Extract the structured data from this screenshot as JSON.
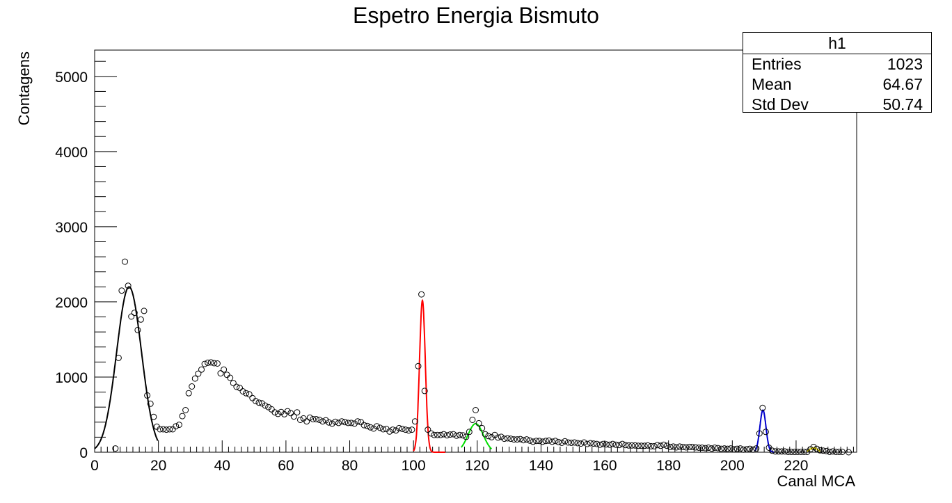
{
  "chart_data": {
    "type": "scatter",
    "title": "Espetro Energia Bismuto",
    "xlabel": "Canal MCA",
    "ylabel": "Contagens",
    "xlim": [
      0,
      239
    ],
    "ylim": [
      0,
      5350
    ],
    "xticks": [
      0,
      20,
      40,
      60,
      80,
      100,
      120,
      140,
      160,
      180,
      200,
      220
    ],
    "yticks": [
      0,
      1000,
      2000,
      3000,
      4000,
      5000
    ],
    "grid": false,
    "stats_box": {
      "name": "h1",
      "rows": [
        {
          "label": "Entries",
          "value": "1023"
        },
        {
          "label": "Mean",
          "value": "64.67"
        },
        {
          "label": "Std Dev",
          "value": "50.74"
        }
      ]
    },
    "points": [
      [
        6.5,
        50
      ],
      [
        7.5,
        1255
      ],
      [
        8.5,
        2150
      ],
      [
        9.5,
        2535
      ],
      [
        10.5,
        2215
      ],
      [
        11.5,
        1805
      ],
      [
        12.5,
        1855
      ],
      [
        13.5,
        1625
      ],
      [
        14.5,
        1765
      ],
      [
        15.5,
        1880
      ],
      [
        16.5,
        755
      ],
      [
        17.5,
        645
      ],
      [
        18.5,
        470
      ],
      [
        19.5,
        340
      ],
      [
        20.5,
        305
      ],
      [
        21.5,
        305
      ],
      [
        22.5,
        300
      ],
      [
        23.5,
        305
      ],
      [
        24.5,
        305
      ],
      [
        25.5,
        345
      ],
      [
        26.5,
        365
      ],
      [
        27.5,
        480
      ],
      [
        28.5,
        560
      ],
      [
        29.5,
        785
      ],
      [
        30.5,
        875
      ],
      [
        31.5,
        980
      ],
      [
        32.5,
        1045
      ],
      [
        33.5,
        1100
      ],
      [
        34.5,
        1175
      ],
      [
        35.5,
        1190
      ],
      [
        36.5,
        1195
      ],
      [
        37.5,
        1185
      ],
      [
        38.5,
        1180
      ],
      [
        39.5,
        1050
      ],
      [
        40.5,
        1100
      ],
      [
        41.5,
        1030
      ],
      [
        42.5,
        990
      ],
      [
        43.5,
        920
      ],
      [
        44.5,
        870
      ],
      [
        45.5,
        855
      ],
      [
        46.5,
        810
      ],
      [
        47.5,
        785
      ],
      [
        48.5,
        770
      ],
      [
        49.5,
        720
      ],
      [
        50.5,
        680
      ],
      [
        51.5,
        660
      ],
      [
        52.5,
        650
      ],
      [
        53.5,
        620
      ],
      [
        54.5,
        600
      ],
      [
        55.5,
        570
      ],
      [
        56.5,
        530
      ],
      [
        57.5,
        510
      ],
      [
        58.5,
        535
      ],
      [
        59.5,
        505
      ],
      [
        60.5,
        545
      ],
      [
        61.5,
        520
      ],
      [
        62.5,
        475
      ],
      [
        63.5,
        530
      ],
      [
        64.5,
        430
      ],
      [
        65.5,
        450
      ],
      [
        66.5,
        410
      ],
      [
        67.5,
        460
      ],
      [
        68.5,
        440
      ],
      [
        69.5,
        440
      ],
      [
        70.5,
        430
      ],
      [
        71.5,
        410
      ],
      [
        72.5,
        425
      ],
      [
        73.5,
        395
      ],
      [
        74.5,
        380
      ],
      [
        75.5,
        405
      ],
      [
        76.5,
        390
      ],
      [
        77.5,
        410
      ],
      [
        78.5,
        400
      ],
      [
        79.5,
        390
      ],
      [
        80.5,
        390
      ],
      [
        81.5,
        380
      ],
      [
        82.5,
        410
      ],
      [
        83.5,
        400
      ],
      [
        84.5,
        360
      ],
      [
        85.5,
        350
      ],
      [
        86.5,
        330
      ],
      [
        87.5,
        315
      ],
      [
        88.5,
        345
      ],
      [
        89.5,
        325
      ],
      [
        90.5,
        305
      ],
      [
        91.5,
        310
      ],
      [
        92.5,
        275
      ],
      [
        93.5,
        300
      ],
      [
        94.5,
        290
      ],
      [
        95.5,
        320
      ],
      [
        96.5,
        310
      ],
      [
        97.5,
        300
      ],
      [
        98.5,
        290
      ],
      [
        99.5,
        300
      ],
      [
        100.5,
        410
      ],
      [
        101.5,
        1145
      ],
      [
        102.5,
        2100
      ],
      [
        103.5,
        815
      ],
      [
        104.5,
        300
      ],
      [
        105.5,
        250
      ],
      [
        106.5,
        230
      ],
      [
        107.5,
        230
      ],
      [
        108.5,
        230
      ],
      [
        109.5,
        240
      ],
      [
        110.5,
        225
      ],
      [
        111.5,
        235
      ],
      [
        112.5,
        240
      ],
      [
        113.5,
        220
      ],
      [
        114.5,
        230
      ],
      [
        115.5,
        225
      ],
      [
        116.5,
        205
      ],
      [
        117.5,
        270
      ],
      [
        118.5,
        430
      ],
      [
        119.5,
        560
      ],
      [
        120.5,
        385
      ],
      [
        121.5,
        320
      ],
      [
        122.5,
        240
      ],
      [
        123.5,
        215
      ],
      [
        124.5,
        200
      ],
      [
        125.5,
        230
      ],
      [
        126.5,
        195
      ],
      [
        127.5,
        205
      ],
      [
        128.5,
        180
      ],
      [
        129.5,
        185
      ],
      [
        130.5,
        180
      ],
      [
        131.5,
        170
      ],
      [
        132.5,
        170
      ],
      [
        133.5,
        175
      ],
      [
        134.5,
        160
      ],
      [
        135.5,
        170
      ],
      [
        136.5,
        155
      ],
      [
        137.5,
        140
      ],
      [
        138.5,
        150
      ],
      [
        139.5,
        150
      ],
      [
        140.5,
        140
      ],
      [
        141.5,
        150
      ],
      [
        142.5,
        155
      ],
      [
        143.5,
        140
      ],
      [
        144.5,
        150
      ],
      [
        145.5,
        135
      ],
      [
        146.5,
        125
      ],
      [
        147.5,
        145
      ],
      [
        148.5,
        130
      ],
      [
        149.5,
        125
      ],
      [
        150.5,
        130
      ],
      [
        151.5,
        120
      ],
      [
        152.5,
        115
      ],
      [
        153.5,
        130
      ],
      [
        154.5,
        110
      ],
      [
        155.5,
        120
      ],
      [
        156.5,
        115
      ],
      [
        157.5,
        110
      ],
      [
        158.5,
        100
      ],
      [
        159.5,
        110
      ],
      [
        160.5,
        105
      ],
      [
        161.5,
        100
      ],
      [
        162.5,
        110
      ],
      [
        163.5,
        100
      ],
      [
        164.5,
        95
      ],
      [
        165.5,
        110
      ],
      [
        166.5,
        95
      ],
      [
        167.5,
        90
      ],
      [
        168.5,
        90
      ],
      [
        169.5,
        90
      ],
      [
        170.5,
        85
      ],
      [
        171.5,
        85
      ],
      [
        172.5,
        85
      ],
      [
        173.5,
        90
      ],
      [
        174.5,
        80
      ],
      [
        175.5,
        80
      ],
      [
        176.5,
        95
      ],
      [
        177.5,
        85
      ],
      [
        178.5,
        100
      ],
      [
        179.5,
        85
      ],
      [
        180.5,
        70
      ],
      [
        181.5,
        75
      ],
      [
        182.5,
        65
      ],
      [
        183.5,
        75
      ],
      [
        184.5,
        70
      ],
      [
        185.5,
        65
      ],
      [
        186.5,
        70
      ],
      [
        187.5,
        70
      ],
      [
        188.5,
        65
      ],
      [
        189.5,
        60
      ],
      [
        190.5,
        60
      ],
      [
        191.5,
        55
      ],
      [
        192.5,
        60
      ],
      [
        193.5,
        50
      ],
      [
        194.5,
        60
      ],
      [
        195.5,
        55
      ],
      [
        196.5,
        45
      ],
      [
        197.5,
        50
      ],
      [
        198.5,
        45
      ],
      [
        199.5,
        50
      ],
      [
        200.5,
        40
      ],
      [
        201.5,
        45
      ],
      [
        202.5,
        50
      ],
      [
        203.5,
        35
      ],
      [
        204.5,
        40
      ],
      [
        205.5,
        45
      ],
      [
        206.5,
        35
      ],
      [
        207.5,
        50
      ],
      [
        208.5,
        250
      ],
      [
        209.5,
        590
      ],
      [
        210.5,
        270
      ],
      [
        211.5,
        60
      ],
      [
        212.5,
        20
      ],
      [
        213.5,
        10
      ],
      [
        214.5,
        10
      ],
      [
        215.5,
        10
      ],
      [
        216.5,
        10
      ],
      [
        217.5,
        5
      ],
      [
        218.5,
        5
      ],
      [
        219.5,
        5
      ],
      [
        220.5,
        5
      ],
      [
        221.5,
        5
      ],
      [
        222.5,
        5
      ],
      [
        223.5,
        5
      ],
      [
        224.5,
        40
      ],
      [
        225.5,
        70
      ],
      [
        226.5,
        45
      ],
      [
        227.5,
        25
      ],
      [
        228.5,
        20
      ],
      [
        229.5,
        15
      ],
      [
        230.5,
        5
      ],
      [
        231.5,
        10
      ],
      [
        232.5,
        5
      ],
      [
        233.5,
        5
      ],
      [
        234.5,
        5
      ],
      [
        236.5,
        0
      ]
    ],
    "fits": [
      {
        "color": "#000000",
        "amp": 2200,
        "mean": 10.8,
        "sigma": 3.9,
        "xmin": 0,
        "xmax": 19.8
      },
      {
        "color": "#ff0000",
        "amp": 2020,
        "mean": 102.8,
        "sigma": 0.9,
        "xmin": 100,
        "xmax": 110
      },
      {
        "color": "#00dd00",
        "amp": 380,
        "mean": 119.5,
        "sigma": 2.4,
        "xmin": 115,
        "xmax": 124.5
      },
      {
        "color": "#0000cc",
        "amp": 560,
        "mean": 209.6,
        "sigma": 0.95,
        "xmin": 207,
        "xmax": 213
      },
      {
        "color": "#ffee00",
        "amp": 58,
        "mean": 225.5,
        "sigma": 1.2,
        "xmin": 223.5,
        "xmax": 227.5
      }
    ]
  }
}
